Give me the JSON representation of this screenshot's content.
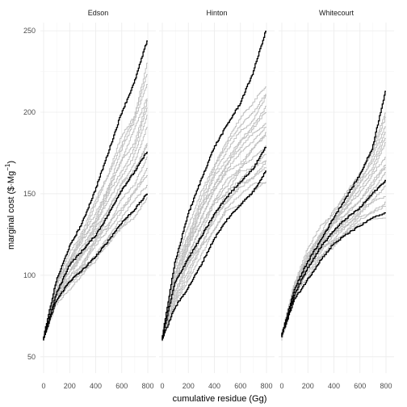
{
  "chart_data": {
    "type": "line",
    "layout": "facet-3-columns",
    "xlabel": "cumulative residue (Gg)",
    "ylabel_main": "marginal cost (",
    "ylabel_units": "$",
    "ylabel_dot": "·",
    "ylabel_mg": "Mg",
    "ylabel_exp": "−1",
    "ylabel_close": ")",
    "xlim": [
      0,
      800
    ],
    "ylim": [
      40,
      255
    ],
    "x_ticks": [
      0,
      200,
      400,
      600,
      800
    ],
    "x_tick_labels": [
      "0",
      "200",
      "400",
      "600",
      "800"
    ],
    "y_ticks": [
      50,
      100,
      150,
      200,
      250
    ],
    "y_tick_labels": [
      "50",
      "100",
      "150",
      "200",
      "250"
    ],
    "grid": "on",
    "theme_colors": {
      "highlight": "#000000",
      "replicate": "#bdbdbd",
      "grid": "#ebebeb"
    },
    "panels": [
      {
        "title": "Edson",
        "x_end": 800,
        "highlighted": [
          {
            "x": [
              0,
              100,
              200,
              300,
              400,
              500,
              600,
              700,
              800
            ],
            "y": [
              60,
              96,
              117,
              132,
              152,
              175,
              199,
              218,
              244
            ]
          },
          {
            "x": [
              0,
              100,
              200,
              300,
              400,
              500,
              600,
              700,
              800
            ],
            "y": [
              60,
              88,
              106,
              115,
              124,
              137,
              152,
              163,
              176
            ]
          },
          {
            "x": [
              0,
              100,
              200,
              300,
              400,
              500,
              600,
              700,
              800
            ],
            "y": [
              60,
              84,
              96,
              103,
              111,
              121,
              132,
              140,
              150
            ]
          }
        ],
        "replicates_low": [
          60,
          81,
          92,
          99,
          108,
          118,
          128,
          137,
          145
        ],
        "replicates_high": [
          60,
          94,
          113,
          127,
          144,
          162,
          182,
          200,
          228
        ]
      },
      {
        "title": "Hinton",
        "x_end": 800,
        "highlighted": [
          {
            "x": [
              0,
              100,
              200,
              300,
              400,
              500,
              600,
              700,
              800
            ],
            "y": [
              60,
              107,
              137,
              158,
              178,
              192,
              205,
              224,
              250
            ]
          },
          {
            "x": [
              0,
              100,
              200,
              300,
              400,
              500,
              600,
              700,
              800
            ],
            "y": [
              60,
              95,
              110,
              123,
              137,
              148,
              157,
              165,
              179
            ]
          },
          {
            "x": [
              0,
              100,
              200,
              300,
              400,
              500,
              600,
              700,
              800
            ],
            "y": [
              60,
              80,
              92,
              106,
              122,
              134,
              143,
              151,
              164
            ]
          }
        ],
        "replicates_low": [
          60,
          84,
          98,
          112,
          127,
          137,
          146,
          151,
          155
        ],
        "replicates_high": [
          60,
          104,
          128,
          150,
          168,
          182,
          193,
          203,
          215
        ]
      },
      {
        "title": "Whitecourt",
        "x_end": 800,
        "highlighted": [
          {
            "x": [
              0,
              100,
              200,
              300,
              400,
              500,
              600,
              700,
              800
            ],
            "y": [
              62,
              91,
              108,
              121,
              135,
              148,
              161,
              178,
              213
            ]
          },
          {
            "x": [
              0,
              100,
              200,
              300,
              400,
              500,
              600,
              700,
              800
            ],
            "y": [
              62,
              88,
              104,
              117,
              127,
              135,
              141,
              150,
              158
            ]
          },
          {
            "x": [
              0,
              100,
              200,
              300,
              400,
              500,
              600,
              700,
              800
            ],
            "y": [
              62,
              85,
              97,
              109,
              119,
              125,
              130,
              135,
              138
            ]
          }
        ],
        "replicates_low": [
          60,
          86,
          101,
          112,
          119,
          125,
          131,
          134,
          136
        ],
        "replicates_high": [
          62,
          95,
          115,
          128,
          139,
          150,
          162,
          175,
          200
        ]
      }
    ]
  }
}
